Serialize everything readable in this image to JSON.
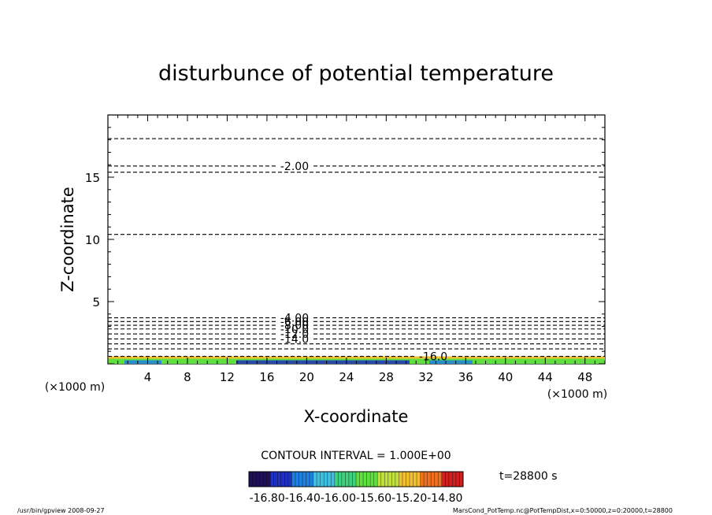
{
  "chart_data": {
    "type": "contour",
    "title": "disturbunce of potential temperature",
    "xlabel": "X-coordinate",
    "ylabel": "Z-coordinate",
    "x_unit": "(×1000 m)",
    "y_unit": "(×1000 m)",
    "xlim": [
      0,
      50
    ],
    "ylim": [
      0,
      20
    ],
    "x_ticks": [
      4,
      8,
      12,
      16,
      20,
      24,
      28,
      32,
      36,
      40,
      44,
      48
    ],
    "y_ticks": [
      5,
      10,
      15
    ],
    "contour_levels": [
      {
        "z": 18.1,
        "label": ""
      },
      {
        "z": 15.9,
        "label": "-2.00"
      },
      {
        "z": 15.4,
        "label": ""
      },
      {
        "z": 10.4,
        "label": ""
      },
      {
        "z": 3.7,
        "label": "-4.00"
      },
      {
        "z": 3.4,
        "label": "-6.00"
      },
      {
        "z": 3.1,
        "label": "-8.00"
      },
      {
        "z": 2.8,
        "label": "-10.0"
      },
      {
        "z": 2.4,
        "label": "-12.0"
      },
      {
        "z": 2.0,
        "label": "-14.0"
      },
      {
        "z": 1.6,
        "label": ""
      },
      {
        "z": 1.2,
        "label": ""
      },
      {
        "z": 0.6,
        "label": "-16.0"
      }
    ],
    "contour_interval": "CONTOUR INTERVAL = 1.000E+00",
    "colorbar": {
      "tick_labels": "-16.80-16.40-16.00-15.60-15.20-14.80",
      "colors": [
        "#20105a",
        "#2030c0",
        "#2080e0",
        "#40c0e0",
        "#40d080",
        "#60e040",
        "#c0e040",
        "#f0c030",
        "#f07020",
        "#d02020"
      ]
    },
    "time_label": "t=28800 s"
  },
  "footer": {
    "left": "/usr/bin/gpview   2008-09-27",
    "right": "MarsCond_PotTemp.nc@PotTempDist,x=0:50000,z=0:20000,t=28800"
  }
}
